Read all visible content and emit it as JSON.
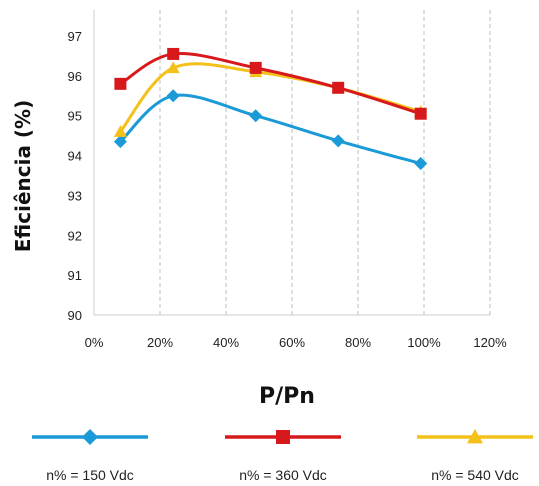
{
  "chart_data": {
    "type": "line",
    "xlabel": "P/Pn",
    "ylabel": "Eficiência (%)",
    "xlim": [
      0,
      120
    ],
    "ylim": [
      90,
      97
    ],
    "x_ticks": [
      0,
      20,
      40,
      60,
      80,
      100,
      120
    ],
    "x_tick_labels": [
      "0%",
      "20%",
      "40%",
      "60%",
      "80%",
      "100%",
      "120%"
    ],
    "y_ticks": [
      90,
      91,
      92,
      93,
      94,
      95,
      96,
      97
    ],
    "y_tick_labels": [
      "90",
      "91",
      "92",
      "93",
      "94",
      "95",
      "96",
      "97"
    ],
    "grid": "vertical-dashed",
    "legend_position": "bottom",
    "smooth": true,
    "series": [
      {
        "name": "n% = 150 Vdc",
        "color": "#1a9ad6",
        "marker": "diamond",
        "x": [
          8,
          24,
          49,
          74,
          99
        ],
        "values": [
          94.35,
          95.5,
          95.0,
          94.37,
          93.8
        ]
      },
      {
        "name": "n% = 360 Vdc",
        "color": "#d7191c",
        "marker": "square",
        "x": [
          8,
          24,
          49,
          74,
          99
        ],
        "values": [
          95.8,
          96.55,
          96.2,
          95.7,
          95.05
        ]
      },
      {
        "name": "n% = 540 Vdc",
        "color": "#f4c01a",
        "marker": "triangle",
        "x": [
          8,
          24,
          49,
          74,
          99
        ],
        "values": [
          94.6,
          96.2,
          96.1,
          95.7,
          95.1
        ]
      }
    ]
  }
}
